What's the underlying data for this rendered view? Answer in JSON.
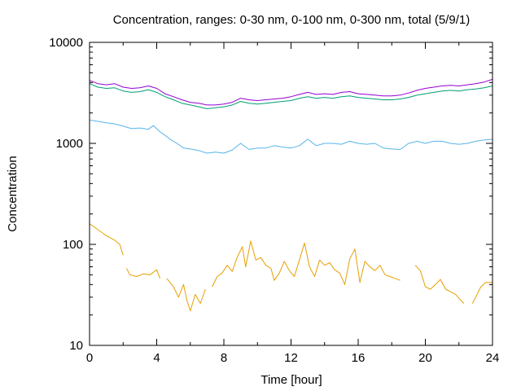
{
  "chart_data": {
    "type": "line",
    "title": "Concentration, ranges: 0-30 nm, 0-100 nm, 0-300 nm, total (5/9/1)",
    "xlabel": "Time [hour]",
    "ylabel": "Concentration",
    "xlim": [
      0,
      24
    ],
    "ylim": [
      10,
      10000
    ],
    "yscale": "log",
    "grid": false,
    "legend": "none",
    "x_ticks": [
      "0",
      "4",
      "8",
      "12",
      "16",
      "20",
      "24"
    ],
    "y_ticks": [
      "10",
      "100",
      "1000",
      "10000"
    ],
    "series": [
      {
        "color": "#e69f00",
        "points": [
          [
            0,
            160
          ],
          [
            0.5,
            140
          ],
          [
            1,
            122
          ],
          [
            1.5,
            110
          ],
          [
            1.8,
            100
          ],
          [
            2,
            78
          ],
          null,
          [
            2.2,
            58
          ],
          [
            2.4,
            50
          ],
          [
            2.8,
            48
          ],
          [
            3.2,
            51
          ],
          [
            3.6,
            50
          ],
          [
            4,
            56
          ],
          [
            4.2,
            46
          ],
          null,
          [
            4.6,
            46
          ],
          [
            5,
            38
          ],
          [
            5.3,
            30
          ],
          [
            5.6,
            40
          ],
          [
            5.8,
            28
          ],
          [
            6,
            22
          ],
          [
            6.3,
            32
          ],
          [
            6.6,
            26
          ],
          [
            6.9,
            36
          ],
          null,
          [
            7.3,
            38
          ],
          [
            7.6,
            48
          ],
          [
            7.9,
            52
          ],
          [
            8.2,
            62
          ],
          [
            8.5,
            54
          ],
          [
            8.8,
            75
          ],
          [
            9.1,
            95
          ],
          [
            9.3,
            60
          ],
          [
            9.6,
            108
          ],
          [
            9.9,
            70
          ],
          [
            10.2,
            74
          ],
          [
            10.5,
            62
          ],
          [
            10.8,
            58
          ],
          [
            11,
            44
          ],
          [
            11.3,
            52
          ],
          [
            11.6,
            68
          ],
          [
            11.9,
            55
          ],
          [
            12.2,
            48
          ],
          [
            12.5,
            70
          ],
          [
            12.8,
            103
          ],
          [
            13.1,
            60
          ],
          [
            13.4,
            48
          ],
          [
            13.7,
            70
          ],
          [
            14,
            62
          ],
          [
            14.3,
            66
          ],
          [
            14.6,
            56
          ],
          [
            14.9,
            52
          ],
          [
            15.2,
            40
          ],
          [
            15.5,
            72
          ],
          [
            15.8,
            90
          ],
          [
            16.1,
            42
          ],
          [
            16.4,
            68
          ],
          [
            16.7,
            60
          ],
          [
            17,
            55
          ],
          [
            17.3,
            62
          ],
          [
            17.6,
            50
          ],
          [
            17.9,
            48
          ],
          [
            18.2,
            46
          ],
          [
            18.5,
            44
          ],
          null,
          [
            19.4,
            62
          ],
          [
            19.7,
            55
          ],
          [
            20,
            38
          ],
          [
            20.3,
            36
          ],
          [
            20.6,
            40
          ],
          [
            20.9,
            45
          ],
          [
            21.2,
            36
          ],
          [
            21.5,
            34
          ],
          [
            21.8,
            32
          ],
          [
            22.1,
            28
          ],
          [
            22.3,
            26
          ],
          null,
          [
            22.8,
            26
          ],
          [
            23,
            30
          ],
          [
            23.3,
            38
          ],
          [
            23.6,
            42
          ],
          [
            24,
            42
          ]
        ]
      },
      {
        "color": "#56b4e9",
        "points": [
          [
            0,
            1700
          ],
          [
            0.5,
            1650
          ],
          [
            1,
            1600
          ],
          [
            1.5,
            1560
          ],
          [
            2,
            1480
          ],
          [
            2.5,
            1400
          ],
          [
            3,
            1420
          ],
          [
            3.5,
            1380
          ],
          [
            3.8,
            1500
          ],
          [
            4.2,
            1300
          ],
          [
            4.5,
            1200
          ],
          [
            4.8,
            1100
          ],
          [
            5.2,
            1000
          ],
          [
            5.6,
            900
          ],
          [
            6,
            880
          ],
          [
            6.5,
            850
          ],
          [
            7,
            800
          ],
          [
            7.5,
            820
          ],
          [
            8,
            800
          ],
          [
            8.5,
            860
          ],
          [
            9,
            1000
          ],
          [
            9.5,
            870
          ],
          [
            10,
            900
          ],
          [
            10.5,
            900
          ],
          [
            11,
            950
          ],
          [
            11.5,
            920
          ],
          [
            12,
            900
          ],
          [
            12.5,
            950
          ],
          [
            13,
            1100
          ],
          [
            13.5,
            950
          ],
          [
            14,
            1000
          ],
          [
            14.5,
            1000
          ],
          [
            15,
            980
          ],
          [
            15.5,
            1050
          ],
          [
            16,
            1000
          ],
          [
            16.5,
            980
          ],
          [
            17,
            1000
          ],
          [
            17.5,
            900
          ],
          [
            18,
            880
          ],
          [
            18.5,
            870
          ],
          [
            19,
            1000
          ],
          [
            19.5,
            1050
          ],
          [
            20,
            1000
          ],
          [
            20.5,
            1050
          ],
          [
            21,
            1050
          ],
          [
            21.5,
            1000
          ],
          [
            22,
            980
          ],
          [
            22.5,
            1000
          ],
          [
            23,
            1050
          ],
          [
            23.5,
            1080
          ],
          [
            24,
            1100
          ]
        ]
      },
      {
        "color": "#009e73",
        "points": [
          [
            0,
            3900
          ],
          [
            0.5,
            3600
          ],
          [
            1,
            3500
          ],
          [
            1.5,
            3550
          ],
          [
            2,
            3300
          ],
          [
            2.5,
            3200
          ],
          [
            3,
            3250
          ],
          [
            3.5,
            3400
          ],
          [
            4,
            3200
          ],
          [
            4.5,
            2900
          ],
          [
            5,
            2700
          ],
          [
            5.5,
            2500
          ],
          [
            6,
            2400
          ],
          [
            6.5,
            2300
          ],
          [
            7,
            2200
          ],
          [
            7.5,
            2250
          ],
          [
            8,
            2300
          ],
          [
            8.5,
            2400
          ],
          [
            9,
            2600
          ],
          [
            9.5,
            2500
          ],
          [
            10,
            2450
          ],
          [
            10.5,
            2500
          ],
          [
            11,
            2550
          ],
          [
            11.5,
            2600
          ],
          [
            12,
            2650
          ],
          [
            12.5,
            2800
          ],
          [
            13,
            2900
          ],
          [
            13.5,
            2800
          ],
          [
            14,
            2850
          ],
          [
            14.5,
            2800
          ],
          [
            15,
            2900
          ],
          [
            15.5,
            2950
          ],
          [
            16,
            2850
          ],
          [
            16.5,
            2800
          ],
          [
            17,
            2750
          ],
          [
            17.5,
            2700
          ],
          [
            18,
            2700
          ],
          [
            18.5,
            2750
          ],
          [
            19,
            2850
          ],
          [
            19.5,
            3000
          ],
          [
            20,
            3100
          ],
          [
            20.5,
            3200
          ],
          [
            21,
            3300
          ],
          [
            21.5,
            3350
          ],
          [
            22,
            3300
          ],
          [
            22.5,
            3400
          ],
          [
            23,
            3450
          ],
          [
            23.5,
            3550
          ],
          [
            24,
            3700
          ]
        ]
      },
      {
        "color": "#9400d3",
        "points": [
          [
            0,
            4200
          ],
          [
            0.5,
            3900
          ],
          [
            1,
            3800
          ],
          [
            1.5,
            3900
          ],
          [
            2,
            3600
          ],
          [
            2.5,
            3500
          ],
          [
            3,
            3550
          ],
          [
            3.5,
            3700
          ],
          [
            4,
            3500
          ],
          [
            4.5,
            3100
          ],
          [
            5,
            2900
          ],
          [
            5.5,
            2700
          ],
          [
            6,
            2550
          ],
          [
            6.5,
            2500
          ],
          [
            7,
            2400
          ],
          [
            7.5,
            2400
          ],
          [
            8,
            2450
          ],
          [
            8.5,
            2550
          ],
          [
            9,
            2800
          ],
          [
            9.5,
            2700
          ],
          [
            10,
            2650
          ],
          [
            10.5,
            2700
          ],
          [
            11,
            2750
          ],
          [
            11.5,
            2800
          ],
          [
            12,
            2900
          ],
          [
            12.5,
            3050
          ],
          [
            13,
            3200
          ],
          [
            13.5,
            3050
          ],
          [
            14,
            3100
          ],
          [
            14.5,
            3050
          ],
          [
            15,
            3200
          ],
          [
            15.5,
            3250
          ],
          [
            16,
            3100
          ],
          [
            16.5,
            3050
          ],
          [
            17,
            3000
          ],
          [
            17.5,
            2950
          ],
          [
            18,
            2950
          ],
          [
            18.5,
            3000
          ],
          [
            19,
            3150
          ],
          [
            19.5,
            3350
          ],
          [
            20,
            3500
          ],
          [
            20.5,
            3600
          ],
          [
            21,
            3700
          ],
          [
            21.5,
            3750
          ],
          [
            22,
            3700
          ],
          [
            22.5,
            3800
          ],
          [
            23,
            3900
          ],
          [
            23.5,
            4050
          ],
          [
            24,
            4300
          ]
        ]
      }
    ]
  }
}
